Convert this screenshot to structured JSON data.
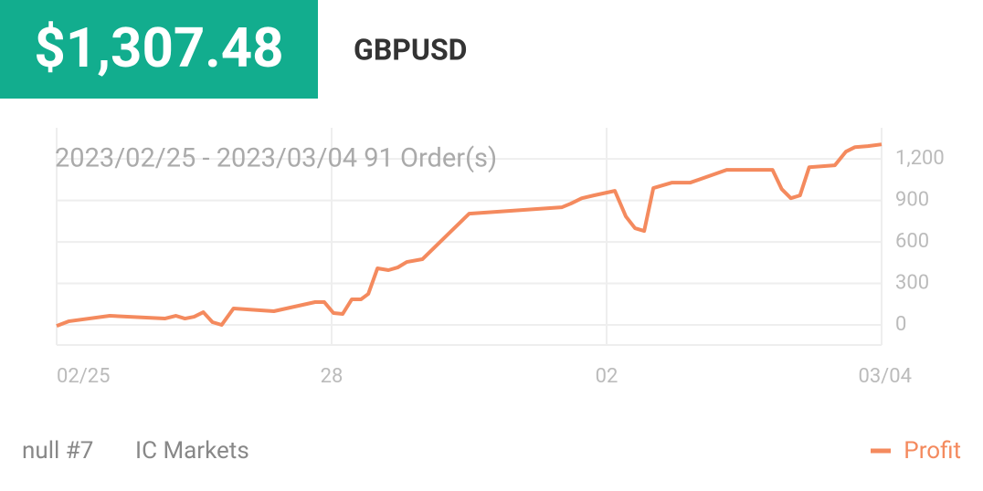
{
  "header": {
    "balance": "$1,307.48",
    "symbol": "GBPUSD"
  },
  "chart_data": {
    "type": "line",
    "title": "2023/02/25 - 2023/03/04  91 Order(s)",
    "x": [
      0,
      1.3,
      5.8,
      11.8,
      13,
      14,
      15,
      16,
      17,
      18,
      19.3,
      23.7,
      28.2,
      29.2,
      30.2,
      31.2,
      32.2,
      33.2,
      34,
      35,
      36.2,
      37.2,
      38.2,
      39.9,
      45,
      55.1,
      56.1,
      57.3,
      58.6,
      60.9,
      62.1,
      63.1,
      64.1,
      65.1,
      67.1,
      69.1,
      73.1,
      78.1,
      79.1,
      80.1,
      81.1,
      82.1,
      84.9,
      86.1,
      87.1,
      88.5,
      90
    ],
    "series": [
      {
        "name": "Profit",
        "color": "#f48a5e",
        "values": [
          -7,
          26,
          66,
          46,
          66,
          46,
          59,
          92,
          20,
          0,
          119,
          99,
          165,
          165,
          86,
          79,
          185,
          185,
          224,
          409,
          396,
          415,
          455,
          475,
          804,
          850,
          877,
          916,
          936,
          969,
          784,
          699,
          679,
          989,
          1028,
          1028,
          1121,
          1121,
          982,
          916,
          936,
          1140,
          1154,
          1252,
          1285,
          1292,
          1305
        ]
      }
    ],
    "xlim": [
      0,
      90
    ],
    "xticks": [
      {
        "value": 0,
        "label": "02/25"
      },
      {
        "value": 30,
        "label": "28"
      },
      {
        "value": 60,
        "label": "02"
      },
      {
        "value": 90,
        "label": "03/04"
      }
    ],
    "ylim": [
      -145,
      1425
    ],
    "yticks": [
      0,
      300,
      600,
      900,
      {
        "value": 1200,
        "label": "1,200"
      }
    ],
    "grid": true
  },
  "footer": {
    "account": "null #7",
    "broker": "IC Markets"
  }
}
